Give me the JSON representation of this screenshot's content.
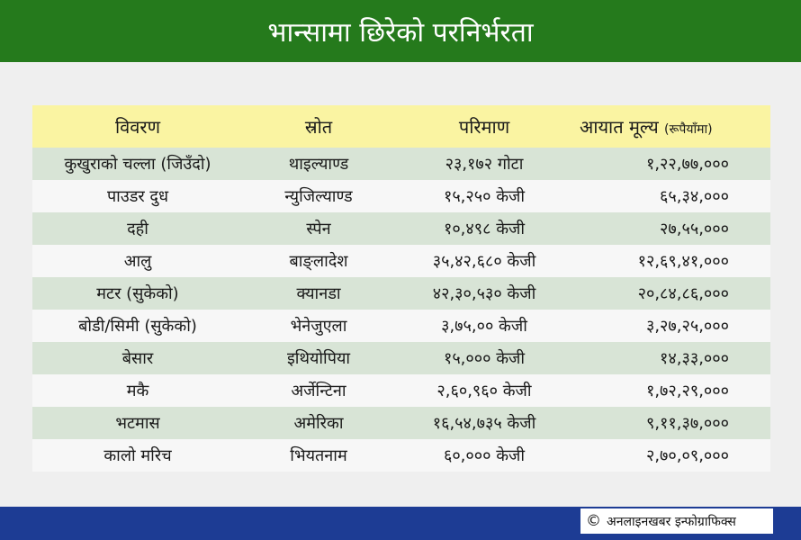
{
  "title": "भान्सामा छिरेको परनिर्भरता",
  "colors": {
    "title_bg": "#257a1c",
    "header_bg": "#faf4a2",
    "row_shaded": "#d8e4d6",
    "row_plain": "#f7f7f7",
    "footer_bg": "#1d3c94"
  },
  "table": {
    "headers": {
      "item": "विवरण",
      "source": "स्रोत",
      "quantity": "परिमाण",
      "value": "आयात मूल्य",
      "value_unit": "(रूपैयाँमा)"
    },
    "rows": [
      {
        "item": "कुखुराको चल्ला (जिउँदो)",
        "source": "थाइल्याण्ड",
        "quantity": "२३,१७२ गोटा",
        "value": "१,२२,७७,०००"
      },
      {
        "item": "पाउडर दुध",
        "source": "न्युजिल्याण्ड",
        "quantity": "१५,२५० केजी",
        "value": "६५,३४,०००"
      },
      {
        "item": "दही",
        "source": "स्पेन",
        "quantity": "१०,४९८ केजी",
        "value": "२७,५५,०००"
      },
      {
        "item": "आलु",
        "source": "बाङ्लादेश",
        "quantity": "३५,४२,६८० केजी",
        "value": "१२,६९,४१,०००"
      },
      {
        "item": "मटर (सुकेको)",
        "source": "क्यानडा",
        "quantity": "४२,३०,५३० केजी",
        "value": "२०,८४,८६,०००"
      },
      {
        "item": "बोडी/सिमी (सुकेको)",
        "source": "भेनेजुएला",
        "quantity": "३,७५,०० केजी",
        "value": "३,२७,२५,०००"
      },
      {
        "item": "बेसार",
        "source": "इथियोपिया",
        "quantity": "१५,००० केजी",
        "value": "१४,३३,०००"
      },
      {
        "item": "मकै",
        "source": "अर्जेन्टिना",
        "quantity": "२,६०,९६० केजी",
        "value": "१,७२,२९,०००"
      },
      {
        "item": "भटमास",
        "source": "अमेरिका",
        "quantity": "१६,५४,७३५ केजी",
        "value": "९,११,३७,०००"
      },
      {
        "item": "कालो मरिच",
        "source": "भियतनाम",
        "quantity": "६०,००० केजी",
        "value": "२,७०,०९,०००"
      }
    ]
  },
  "footer": {
    "credit_icon": "copyright-icon",
    "credit": "अनलाइनखबर इन्फोग्राफिक्स"
  }
}
